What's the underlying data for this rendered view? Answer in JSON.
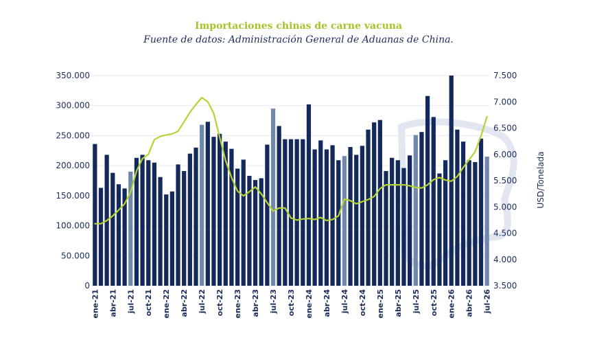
{
  "chart_data": {
    "type": "bar",
    "title": "Importaciones chinas de carne vacuna",
    "subtitle": "Fuente de datos: Administración General de Aduanas de China.",
    "xlabel": "",
    "ylabel": "",
    "y2label": "USD/Tonelada",
    "ylim": [
      0,
      350000
    ],
    "y2lim": [
      3500,
      7500
    ],
    "yticks": [
      "0",
      "50.000",
      "100.000",
      "150.000",
      "200.000",
      "250.000",
      "300.000",
      "350.000"
    ],
    "y2ticks": [
      "3.500",
      "4.000",
      "4.500",
      "5.000",
      "5.500",
      "6.000",
      "6.500",
      "7.000",
      "7.500"
    ],
    "grid": true,
    "bar_color": "#13295b",
    "highlight_color": "#6f88ab",
    "line_color": "#b5d334",
    "xtick_labels": [
      {
        "index": 0,
        "label": "ene-21"
      },
      {
        "index": 3,
        "label": "abr-21"
      },
      {
        "index": 6,
        "label": "jul-21"
      },
      {
        "index": 9,
        "label": "oct-21"
      },
      {
        "index": 12,
        "label": "ene-22"
      },
      {
        "index": 15,
        "label": "abr-22"
      },
      {
        "index": 18,
        "label": "jul-22"
      },
      {
        "index": 21,
        "label": "oct-22"
      },
      {
        "index": 24,
        "label": "ene-23"
      },
      {
        "index": 27,
        "label": "abr-23"
      },
      {
        "index": 30,
        "label": "jul-23"
      },
      {
        "index": 33,
        "label": "oct-23"
      },
      {
        "index": 36,
        "label": "ene-24"
      },
      {
        "index": 39,
        "label": "abr-24"
      },
      {
        "index": 42,
        "label": "jul-24"
      },
      {
        "index": 45,
        "label": "oct-24"
      },
      {
        "index": 48,
        "label": "ene-25"
      },
      {
        "index": 51,
        "label": "abr-25"
      },
      {
        "index": 54,
        "label": "jul-25"
      },
      {
        "index": 57,
        "label": "oct-25"
      },
      {
        "index": 60,
        "label": "ene-26"
      },
      {
        "index": 63,
        "label": "abr-26"
      },
      {
        "index": 66,
        "label": "jul-26"
      }
    ],
    "series": [
      {
        "type": "bar",
        "axis": "left",
        "values": [
          236000,
          163000,
          218000,
          188000,
          169000,
          162000,
          190000,
          213000,
          218000,
          209000,
          205000,
          181000,
          152000,
          157000,
          202000,
          191000,
          220000,
          230000,
          268000,
          273000,
          248000,
          253000,
          240000,
          228000,
          195000,
          210000,
          183000,
          176000,
          179000,
          235000,
          295000,
          266000,
          244000,
          244000,
          244000,
          244000,
          302000,
          227000,
          242000,
          227000,
          234000,
          209000,
          216000,
          231000,
          218000,
          233000,
          260000,
          272000,
          276000,
          191000,
          213000,
          209000,
          196000,
          217000,
          251000,
          256000,
          316000,
          281000,
          187000,
          209000,
          350000,
          260000,
          240000,
          209000,
          206000,
          245000,
          215000
        ],
        "highlighted_indices": [
          6,
          18,
          30,
          42,
          54,
          66
        ]
      },
      {
        "type": "line",
        "axis": "right",
        "values": [
          4680,
          4680,
          4740,
          4830,
          4940,
          5060,
          5280,
          5680,
          5920,
          6000,
          6280,
          6340,
          6370,
          6390,
          6440,
          6620,
          6800,
          6950,
          7080,
          7000,
          6780,
          6330,
          5880,
          5560,
          5300,
          5210,
          5290,
          5380,
          5250,
          5080,
          4920,
          4980,
          4980,
          4790,
          4750,
          4770,
          4780,
          4760,
          4800,
          4740,
          4760,
          4830,
          5150,
          5120,
          5060,
          5100,
          5140,
          5200,
          5350,
          5420,
          5420,
          5420,
          5420,
          5400,
          5370,
          5360,
          5420,
          5520,
          5560,
          5510,
          5490,
          5580,
          5750,
          5900,
          6050,
          6350,
          6720
        ]
      }
    ]
  }
}
